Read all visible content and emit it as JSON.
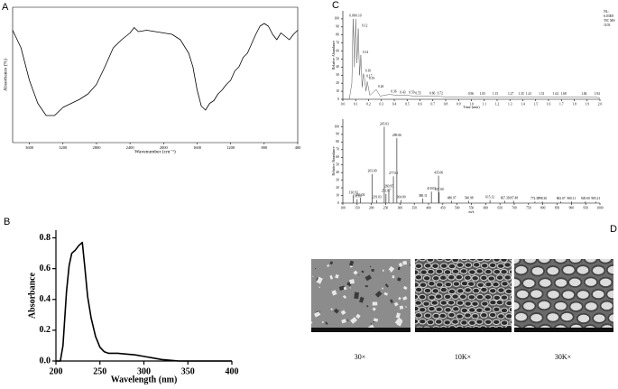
{
  "chart_data": [
    {
      "type": "line",
      "label": "A",
      "x_label": "Wavenumber (cm⁻¹)",
      "y_label": "Absorbance (%)",
      "x": [
        3800,
        3700,
        3600,
        3500,
        3400,
        3300,
        3200,
        3100,
        3000,
        2900,
        2800,
        2700,
        2600,
        2500,
        2400,
        2350,
        2300,
        2200,
        2100,
        2000,
        1900,
        1800,
        1700,
        1650,
        1600,
        1550,
        1500,
        1450,
        1400,
        1350,
        1300,
        1250,
        1200,
        1150,
        1100,
        1050,
        1000,
        950,
        900,
        850,
        800,
        750,
        700,
        650,
        600,
        500,
        450,
        400
      ],
      "values": [
        83,
        70,
        46,
        29,
        20,
        20,
        26,
        29,
        32,
        36,
        43,
        56,
        70,
        76,
        81,
        85,
        82,
        83,
        82,
        81,
        80,
        76,
        66,
        56,
        39,
        27,
        24,
        29,
        31,
        36,
        39,
        43,
        46,
        53,
        56,
        63,
        66,
        73,
        80,
        86,
        88,
        86,
        80,
        76,
        81,
        76,
        80,
        83
      ],
      "color": "#000000",
      "xlim": [
        3800,
        400
      ],
      "ylim": [
        0,
        100
      ],
      "xticks": [
        3600,
        3200,
        2800,
        2400,
        2000,
        1600,
        1200,
        800,
        400
      ]
    },
    {
      "type": "line",
      "label": "B",
      "x_label": "Wavelength (nm)",
      "y_label": "Absorbance",
      "x": [
        200,
        205,
        208,
        212,
        215,
        218,
        222,
        226,
        230,
        233,
        236,
        240,
        245,
        250,
        255,
        260,
        270,
        280,
        290,
        300,
        310,
        320,
        330,
        340,
        350,
        400
      ],
      "values": [
        0,
        0,
        0.1,
        0.45,
        0.62,
        0.7,
        0.72,
        0.75,
        0.77,
        0.6,
        0.42,
        0.28,
        0.16,
        0.09,
        0.06,
        0.05,
        0.05,
        0.045,
        0.04,
        0.03,
        0.02,
        0.01,
        0.005,
        0,
        0,
        0
      ],
      "color": "#000000",
      "xlim": [
        200,
        400
      ],
      "ylim": [
        0,
        0.85
      ],
      "xticks": [
        200,
        250,
        300,
        350,
        400
      ],
      "yticks": [
        {
          "value": 0,
          "label": "0.0"
        },
        {
          "value": 0.2,
          "label": "0.2"
        },
        {
          "value": 0.4,
          "label": "0.4"
        },
        {
          "value": 0.6,
          "label": "0.6"
        },
        {
          "value": 0.8,
          "label": "0.8"
        }
      ]
    },
    {
      "type": "line",
      "label": "C",
      "x_label": "Time (min)",
      "y_label": "Relative Abundance",
      "annotations": [
        "NL:",
        "6.03E8",
        "TIC MS",
        "1103"
      ],
      "x": [
        0,
        0.05,
        0.07,
        0.08,
        0.09,
        0.1,
        0.11,
        0.12,
        0.13,
        0.14,
        0.15,
        0.16,
        0.17,
        0.18,
        0.19,
        0.21,
        0.26,
        0.29,
        0.36,
        0.43,
        0.5,
        0.55,
        0.66,
        0.72,
        0.8,
        0.9,
        0.96,
        1.05,
        1.15,
        1.27,
        1.35,
        1.41,
        1.51,
        1.62,
        1.68,
        1.84,
        1.94,
        2.0
      ],
      "values": [
        0,
        0,
        20,
        100,
        40,
        100,
        45,
        88,
        30,
        55,
        15,
        32,
        25,
        10,
        22,
        5,
        12,
        4,
        6,
        5,
        5,
        4,
        4,
        4,
        3,
        3,
        3,
        3,
        3,
        3,
        3,
        3,
        3,
        3,
        3,
        3,
        3,
        2
      ],
      "color": "#555555",
      "peaks": {
        "x": [
          0.08,
          0.1,
          0.12,
          0.14,
          0.16,
          0.17,
          0.19,
          0.26,
          0.36,
          0.43,
          0.5,
          0.55,
          0.66,
          0.72,
          0.96,
          1.05,
          1.15,
          1.27,
          1.35,
          1.41,
          1.51,
          1.62,
          1.68,
          1.84,
          1.94
        ],
        "values": [
          100,
          100,
          88,
          55,
          32,
          25,
          22,
          12,
          6,
          5,
          5,
          4,
          4,
          4,
          3,
          3,
          3,
          3,
          3,
          3,
          3,
          3,
          3,
          3,
          3
        ],
        "x_labels": [
          "0.08",
          "0.10",
          "0.12",
          "0.14",
          "0.16",
          "0.17",
          "0.19",
          "0.26",
          "0.36",
          "0.43",
          "0.50",
          "0.55",
          "0.66",
          "0.72",
          "0.96",
          "1.05",
          "1.15",
          "1.27",
          "1.35",
          "1.41",
          "1.51",
          "1.62",
          "1.68",
          "1.84",
          "1.94"
        ]
      },
      "xlim": [
        0,
        2.0
      ],
      "ylim": [
        0,
        110
      ],
      "xticks": [
        {
          "value": 0,
          "label": "0.0"
        },
        {
          "value": 0.1,
          "label": "0.1"
        },
        {
          "value": 0.2,
          "label": "0.2"
        },
        {
          "value": 0.3,
          "label": "0.3"
        },
        {
          "value": 0.4,
          "label": "0.4"
        },
        {
          "value": 0.5,
          "label": "0.5"
        },
        {
          "value": 0.6,
          "label": "0.6"
        },
        {
          "value": 0.7,
          "label": "0.7"
        },
        {
          "value": 0.8,
          "label": "0.8"
        },
        {
          "value": 0.9,
          "label": "0.9"
        },
        {
          "value": 1,
          "label": "1.0"
        },
        {
          "value": 1.1,
          "label": "1.1"
        },
        {
          "value": 1.2,
          "label": "1.2"
        },
        {
          "value": 1.3,
          "label": "1.3"
        },
        {
          "value": 1.4,
          "label": "1.4"
        },
        {
          "value": 1.5,
          "label": "1.5"
        },
        {
          "value": 1.6,
          "label": "1.6"
        },
        {
          "value": 1.7,
          "label": "1.7"
        },
        {
          "value": 1.8,
          "label": "1.8"
        },
        {
          "value": 1.9,
          "label": "1.9"
        },
        {
          "value": 2,
          "label": "2.0"
        }
      ],
      "yticks": [
        0,
        10,
        20,
        30,
        40,
        50,
        60,
        70,
        80,
        90,
        100
      ]
    },
    {
      "type": "bar",
      "x_label": "m/z",
      "y_label": "Relative Abundance",
      "x": [
        136.93,
        150.0,
        161.04,
        203.0,
        219.03,
        245.03,
        251.07,
        260.95,
        277.03,
        289.06,
        304.0,
        380.11,
        410.03,
        435.06,
        437.0,
        480.97,
        540.98,
        615.12,
        667.31,
        697.48,
        772.3,
        798.3,
        863.07,
        900.11,
        949.0,
        985.21
      ],
      "values": [
        10,
        5,
        7,
        38,
        4,
        100,
        12,
        18,
        35,
        85,
        4,
        6,
        15,
        36,
        14,
        3,
        3,
        4,
        3,
        3,
        2,
        2,
        2,
        2,
        2,
        2
      ],
      "x_labels": [
        "136.93",
        "150.00",
        "161.04",
        "203.00",
        "219.03",
        "245.03",
        "251.07",
        "260.95",
        "277.03",
        "289.06",
        "304.00",
        "380.11",
        "410.03",
        "435.06",
        "437.00",
        "480.97",
        "540.98",
        "615.12",
        "667.31",
        "697.48",
        "772.30",
        "798.30",
        "863.07",
        "900.11",
        "949.00",
        "985.21"
      ],
      "color": "#333333",
      "xlim": [
        100,
        1000
      ],
      "ylim": [
        0,
        110
      ],
      "xticks": [
        100,
        150,
        200,
        250,
        300,
        350,
        400,
        450,
        500,
        550,
        600,
        650,
        700,
        750,
        800,
        850,
        900,
        950,
        1000
      ],
      "yticks": [
        0,
        10,
        20,
        30,
        40,
        50,
        60,
        70,
        80,
        90,
        100
      ]
    }
  ],
  "sem_images": {
    "label": "D",
    "captions": [
      "30×",
      "10K×",
      "30K×"
    ]
  }
}
